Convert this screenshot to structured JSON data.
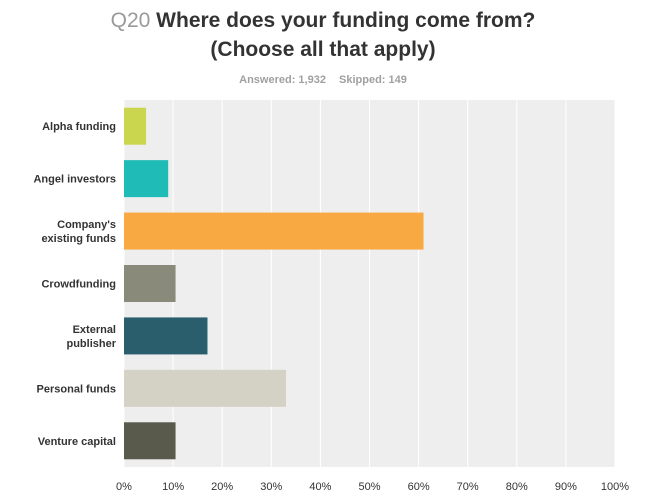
{
  "header": {
    "qnum": "Q20",
    "line1": "Where does your funding come from?",
    "line2": "(Choose all that apply)"
  },
  "stats": {
    "answered": "Answered: 1,932",
    "skipped": "Skipped: 149"
  },
  "chart_data": {
    "type": "bar",
    "orientation": "horizontal",
    "categories": [
      [
        "Alpha funding"
      ],
      [
        "Angel investors"
      ],
      [
        "Company's",
        "existing funds"
      ],
      [
        "Crowdfunding"
      ],
      [
        "External",
        "publisher"
      ],
      [
        "Personal funds"
      ],
      [
        "Venture capital"
      ]
    ],
    "values": [
      4.5,
      9,
      61,
      10.5,
      17,
      33,
      10.5
    ],
    "colors": [
      "#c9d64e",
      "#1fbcb7",
      "#f9a942",
      "#8a8a7a",
      "#2a5e6c",
      "#d4d2c4",
      "#5a5a4c"
    ],
    "xlim": [
      0,
      100
    ],
    "xticks": [
      "0%",
      "10%",
      "20%",
      "30%",
      "40%",
      "50%",
      "60%",
      "70%",
      "80%",
      "90%",
      "100%"
    ],
    "grid": true,
    "background": "#eeeeee"
  }
}
